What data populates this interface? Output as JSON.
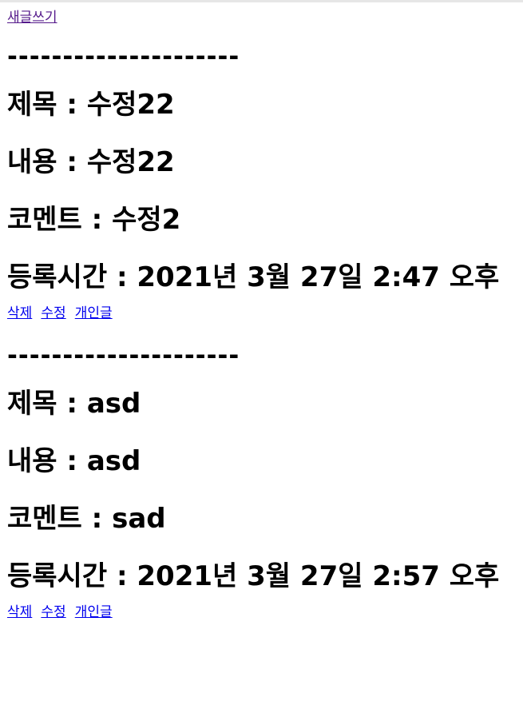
{
  "nav": {
    "new_post_label": "새글쓰기"
  },
  "separator": "---------------------",
  "posts": [
    {
      "title_line": "제목 : 수정22",
      "content_line": "내용 : 수정22",
      "comment_line": "코멘트 : 수정2",
      "time_line": "등록시간 : 2021년 3월 27일 2:47 오후",
      "delete_label": "삭제",
      "edit_label": "수정",
      "private_label": "개인글"
    },
    {
      "title_line": "제목 : asd",
      "content_line": "내용 : asd",
      "comment_line": "코멘트 : sad",
      "time_line": "등록시간 : 2021년 3월 27일 2:57 오후",
      "delete_label": "삭제",
      "edit_label": "수정",
      "private_label": "개인글"
    }
  ],
  "colors": {
    "link": "#0000ee",
    "visited_link": "#551a8b",
    "text": "#000000"
  }
}
